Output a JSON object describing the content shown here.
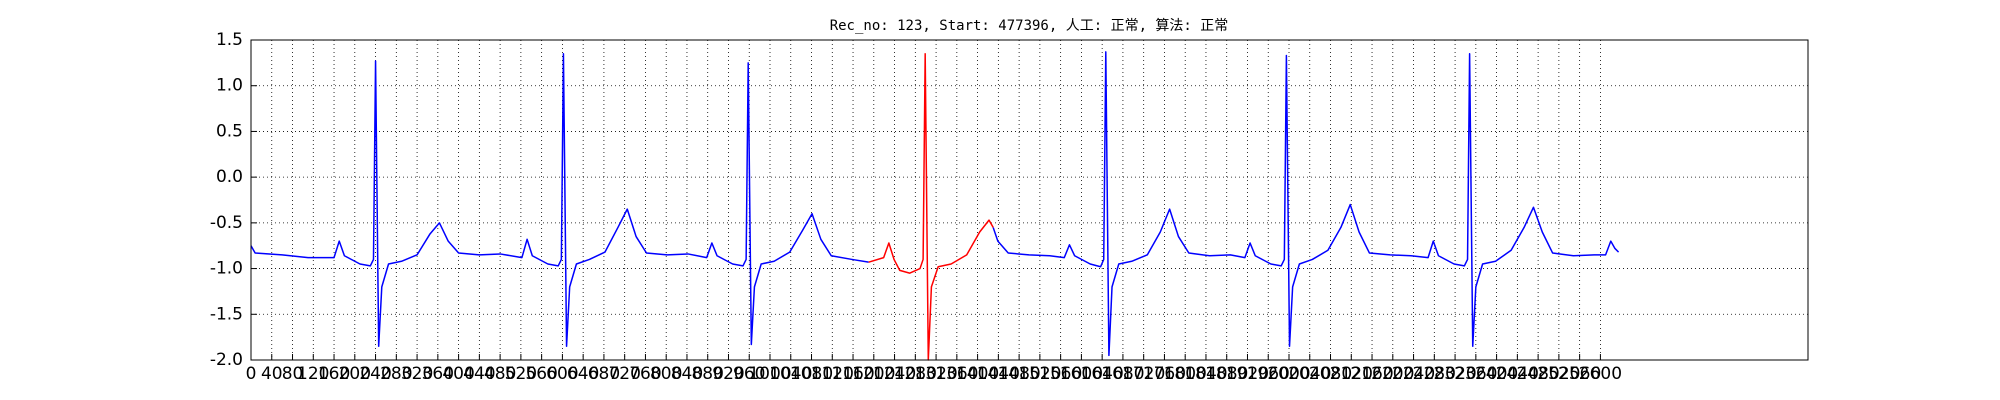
{
  "chart_data": {
    "type": "line",
    "title": "Rec_no: 123, Start: 477396, 人工: 正常, 算法: 正常",
    "xlim": [
      0,
      3000
    ],
    "xticks": [
      0,
      40,
      80,
      120,
      160,
      200,
      240,
      280,
      320,
      360,
      400,
      440,
      480,
      520,
      560,
      600,
      640,
      680,
      720,
      760,
      800,
      840,
      880,
      920,
      960,
      1000,
      1040,
      1080,
      1120,
      1160,
      1200,
      1240,
      1280,
      1320,
      1360,
      1400,
      1440,
      1480,
      1520,
      1560,
      1600,
      1640,
      1680,
      1720,
      1760,
      1800,
      1840,
      1880,
      1920,
      1960,
      2000,
      2040,
      2080,
      2120,
      2160,
      2200,
      2240,
      2280,
      2320,
      2360,
      2400,
      2440,
      2480,
      2520,
      2560,
      2600
    ],
    "ylim": [
      -2,
      1.5
    ],
    "yticks": [
      {
        "value": -2,
        "label": "-2.0"
      },
      1.5,
      {
        "value": -1,
        "label": "-1.0"
      },
      -0.5,
      {
        "value": 0,
        "label": "0.0"
      },
      0.5,
      {
        "value": 1,
        "label": "1.0"
      },
      -1.5
    ],
    "grid": true,
    "series": [
      {
        "color": "#0000ff",
        "x": [
          0,
          8,
          60,
          110,
          160,
          170,
          180,
          210,
          230,
          236,
          240,
          246,
          252,
          265,
          290,
          320,
          345,
          363,
          380,
          400,
          440,
          480,
          522,
          532,
          542,
          572,
          592,
          598,
          602,
          608,
          614,
          627,
          652,
          682,
          707,
          725,
          742,
          762,
          802,
          842,
          878,
          888,
          898,
          928,
          948,
          954,
          958,
          964,
          970,
          983,
          1008,
          1038,
          1063,
          1081,
          1098,
          1118,
          1158,
          1190,
          1300,
          1430,
          1439,
          1459,
          1499,
          1539,
          1567,
          1577,
          1587,
          1617,
          1637,
          1643,
          1647,
          1653,
          1659,
          1672,
          1697,
          1727,
          1752,
          1770,
          1787,
          1807,
          1847,
          1887,
          1915,
          1925,
          1935,
          1965,
          1985,
          1991,
          1995,
          2001,
          2007,
          2020,
          2045,
          2075,
          2100,
          2118,
          2135,
          2155,
          2195,
          2235,
          2268,
          2278,
          2288,
          2318,
          2338,
          2344,
          2348,
          2354,
          2360,
          2373,
          2398,
          2428,
          2453,
          2471,
          2488,
          2508,
          2548,
          2588,
          2610,
          2620,
          2628,
          2635
        ],
        "values": [
          -0.75,
          -0.83,
          -0.85,
          -0.88,
          -0.88,
          -0.7,
          -0.86,
          -0.95,
          -0.97,
          -0.9,
          1.27,
          -1.85,
          -1.2,
          -0.95,
          -0.92,
          -0.85,
          -0.62,
          -0.5,
          -0.7,
          -0.83,
          -0.85,
          -0.84,
          -0.88,
          -0.68,
          -0.86,
          -0.95,
          -0.97,
          -0.9,
          1.35,
          -1.85,
          -1.2,
          -0.95,
          -0.9,
          -0.82,
          -0.55,
          -0.35,
          -0.65,
          -0.83,
          -0.85,
          -0.84,
          -0.88,
          -0.72,
          -0.86,
          -0.95,
          -0.97,
          -0.9,
          1.25,
          -1.83,
          -1.2,
          -0.95,
          -0.92,
          -0.82,
          -0.58,
          -0.4,
          -0.68,
          -0.86,
          -0.9,
          -0.93,
          null,
          -0.55,
          -0.7,
          -0.83,
          -0.85,
          -0.86,
          -0.88,
          -0.74,
          -0.86,
          -0.95,
          -0.98,
          -0.9,
          1.37,
          -1.95,
          -1.2,
          -0.95,
          -0.92,
          -0.85,
          -0.6,
          -0.35,
          -0.65,
          -0.83,
          -0.86,
          -0.85,
          -0.88,
          -0.72,
          -0.86,
          -0.95,
          -0.97,
          -0.9,
          1.33,
          -1.85,
          -1.2,
          -0.95,
          -0.9,
          -0.8,
          -0.55,
          -0.3,
          -0.6,
          -0.83,
          -0.85,
          -0.86,
          -0.88,
          -0.7,
          -0.86,
          -0.95,
          -0.97,
          -0.9,
          1.35,
          -1.85,
          -1.2,
          -0.95,
          -0.92,
          -0.8,
          -0.55,
          -0.33,
          -0.6,
          -0.83,
          -0.86,
          -0.85,
          -0.85,
          -0.7,
          -0.78,
          -0.82
        ]
      },
      {
        "color": "#ff0000",
        "x": [
          1190,
          1219,
          1229,
          1239,
          1250,
          1269,
          1289,
          1295,
          1299,
          1305,
          1311,
          1324,
          1349,
          1379,
          1404,
          1422,
          1430
        ],
        "values": [
          -0.93,
          -0.88,
          -0.72,
          -0.9,
          -1.02,
          -1.05,
          -1.0,
          -0.9,
          1.35,
          -2.0,
          -1.2,
          -0.98,
          -0.95,
          -0.85,
          -0.6,
          -0.47,
          -0.55
        ]
      }
    ]
  }
}
